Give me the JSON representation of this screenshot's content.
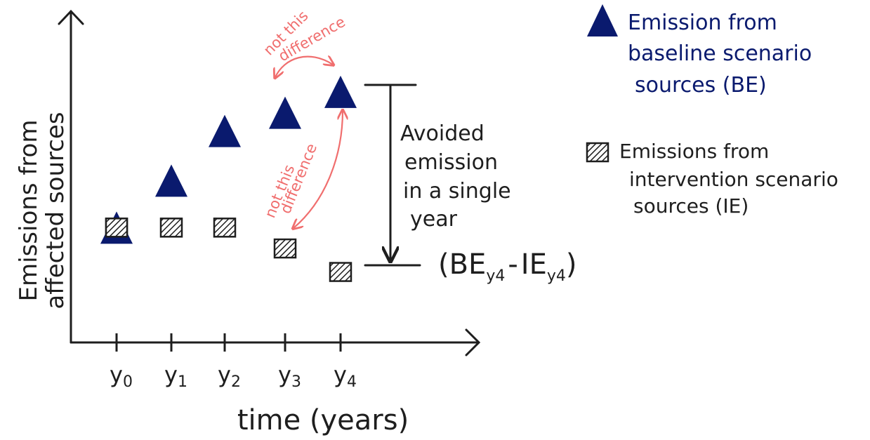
{
  "chart_data": {
    "type": "scatter",
    "title": "",
    "xlabel": "time (years)",
    "ylabel_lines": [
      "Emissions from",
      "affected sources"
    ],
    "categories": [
      "y0",
      "y1",
      "y2",
      "y3",
      "y4"
    ],
    "tick_labels": [
      {
        "base": "y",
        "sub": "0"
      },
      {
        "base": "y",
        "sub": "1"
      },
      {
        "base": "y",
        "sub": "2"
      },
      {
        "base": "y",
        "sub": "3"
      },
      {
        "base": "y",
        "sub": "4"
      }
    ],
    "series": [
      {
        "name": "Emission from baseline scenario sources (BE)",
        "marker": "triangle",
        "color": "#0a1a6e",
        "values": [
          4.4,
          6.2,
          8.1,
          8.8,
          9.6
        ]
      },
      {
        "name": "Emissions from intervention scenario sources (IE)",
        "marker": "hatched-square",
        "color": "#1e1e1e",
        "values": [
          4.4,
          4.4,
          4.4,
          3.6,
          2.7
        ]
      }
    ],
    "ylim": [
      0,
      12
    ],
    "grid": false,
    "legend_position": "right",
    "legend": [
      {
        "marker": "triangle",
        "color": "#0a1a6e",
        "lines": [
          "Emission from",
          "baseline scenario",
          "sources (BE)"
        ]
      },
      {
        "marker": "hatched-square",
        "color": "#1e1e1e",
        "lines": [
          "Emissions from",
          "intervention scenario",
          "sources (IE)"
        ]
      }
    ],
    "annotations": {
      "avoided_lines": [
        "Avoided",
        "emission",
        "in a single",
        "year"
      ],
      "formula": {
        "open": "(",
        "be": "BE",
        "be_sub": "y4",
        "minus": "-",
        "ie": "IE",
        "ie_sub": "y4",
        "close": ")"
      },
      "not_this_top": [
        "not this",
        "difference"
      ],
      "not_this_mid": [
        "not this",
        "difference"
      ],
      "annotation_color": "#f06e6e"
    }
  }
}
